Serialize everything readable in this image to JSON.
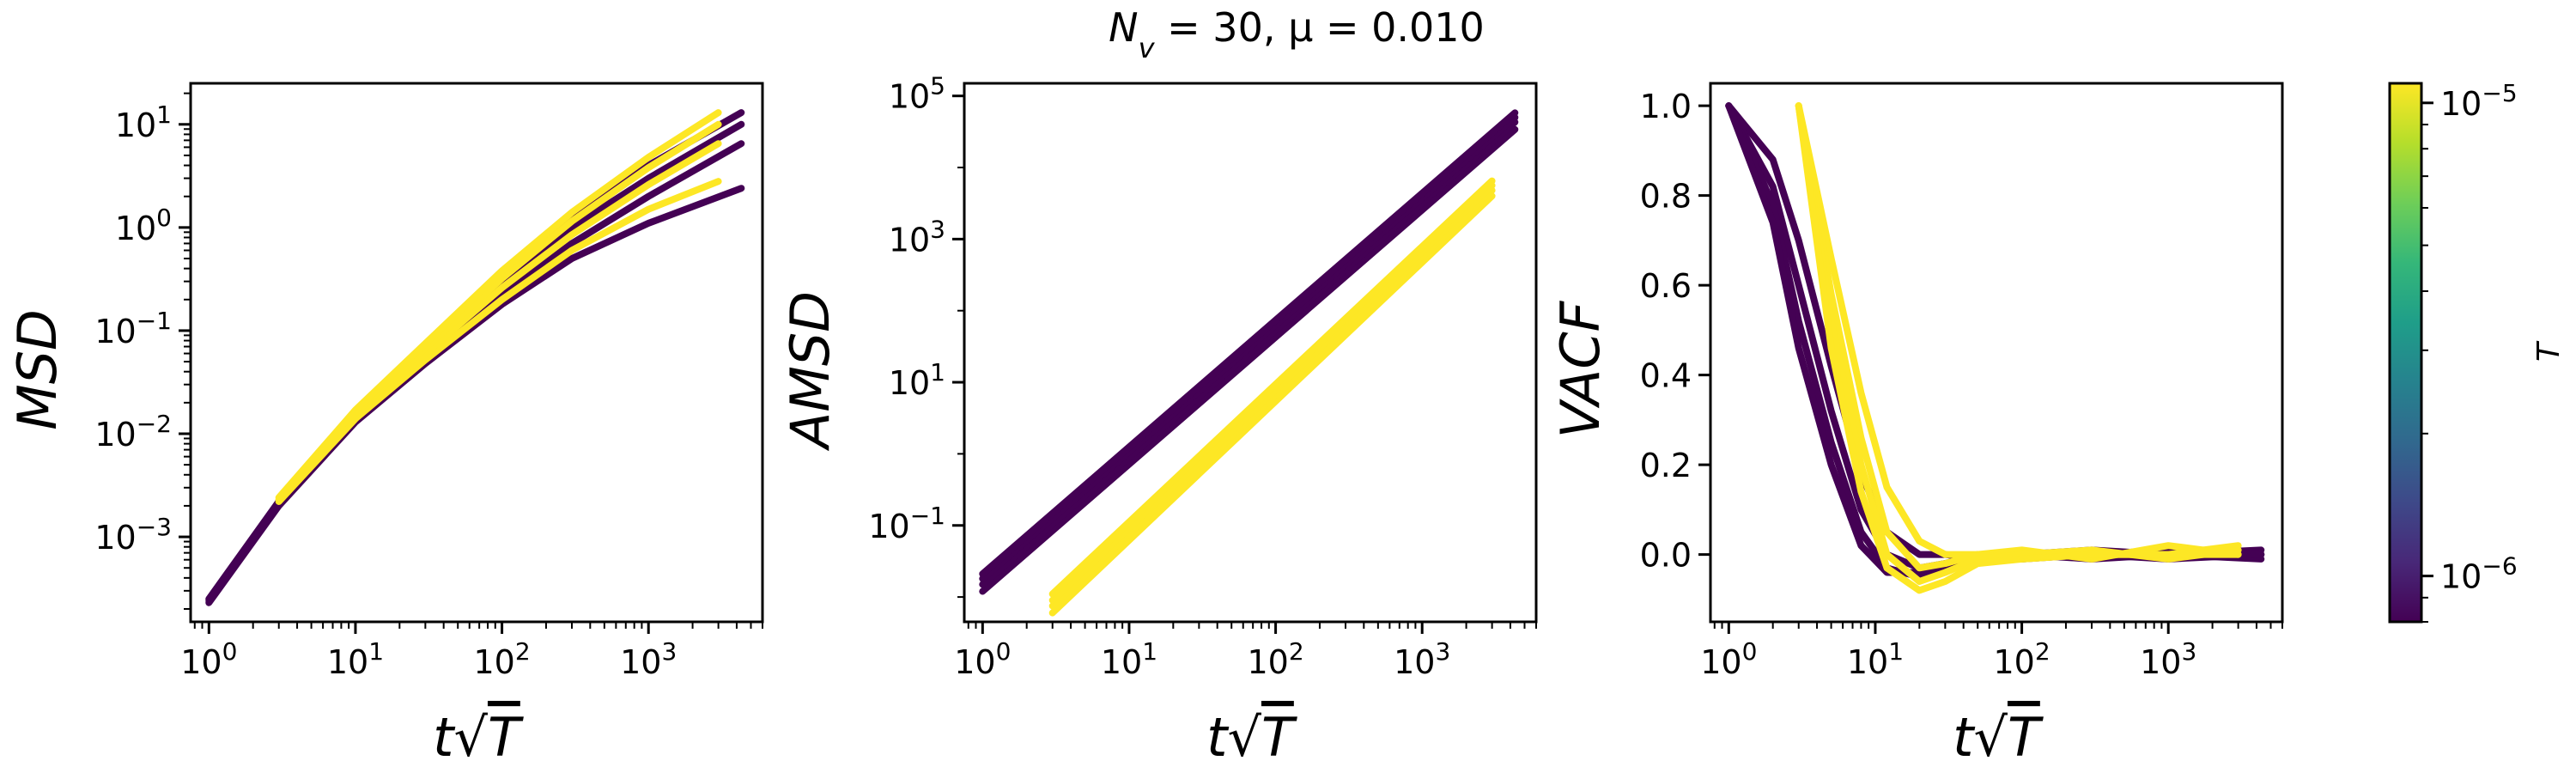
{
  "figure": {
    "title": "N_v = 30, μ = 0.010",
    "colorbar": {
      "label": "T",
      "scale": "log",
      "range": [
        8e-07,
        1.1e-05
      ],
      "ticks": [
        {
          "value": 1e-06,
          "label": "10^-6"
        },
        {
          "value": 1e-05,
          "label": "10^-5"
        }
      ],
      "colormap": [
        "#440154",
        "#482878",
        "#3e4989",
        "#31688e",
        "#26828e",
        "#1f9e89",
        "#35b779",
        "#6ece58",
        "#b5de2b",
        "#fde725"
      ]
    }
  },
  "chart_data": [
    {
      "type": "line",
      "xlabel": "t√T",
      "ylabel": "MSD",
      "xscale": "log",
      "yscale": "log",
      "xlim": [
        0.75,
        6000
      ],
      "ylim": [
        0.00015,
        25
      ],
      "xticks": [
        {
          "value": 1,
          "label": "10^0"
        },
        {
          "value": 10,
          "label": "10^1"
        },
        {
          "value": 100,
          "label": "10^2"
        },
        {
          "value": 1000,
          "label": "10^3"
        }
      ],
      "yticks": [
        {
          "value": 0.001,
          "label": "10^-3"
        },
        {
          "value": 0.01,
          "label": "10^-2"
        },
        {
          "value": 0.1,
          "label": "10^-1"
        },
        {
          "value": 1,
          "label": "10^0"
        },
        {
          "value": 10,
          "label": "10^1"
        }
      ],
      "series": [
        {
          "T_level": "low",
          "color": "#440154",
          "x": [
            1,
            3,
            10,
            30,
            100,
            300,
            1000,
            4300
          ],
          "y": [
            0.00023,
            0.002,
            0.013,
            0.048,
            0.18,
            0.5,
            1.1,
            2.4
          ]
        },
        {
          "T_level": "low",
          "color": "#440154",
          "x": [
            1,
            3,
            10,
            30,
            100,
            300,
            1000,
            4300
          ],
          "y": [
            0.00024,
            0.0021,
            0.014,
            0.055,
            0.22,
            0.7,
            2.0,
            6.5
          ]
        },
        {
          "T_level": "low",
          "color": "#440154",
          "x": [
            1,
            3,
            10,
            30,
            100,
            300,
            1000,
            4300
          ],
          "y": [
            0.00025,
            0.0022,
            0.015,
            0.062,
            0.28,
            1.0,
            3.0,
            10
          ]
        },
        {
          "T_level": "low",
          "color": "#440154",
          "x": [
            1,
            3,
            10,
            30,
            100,
            300,
            1000,
            4300
          ],
          "y": [
            0.00025,
            0.0022,
            0.016,
            0.07,
            0.35,
            1.3,
            4.0,
            13
          ]
        },
        {
          "T_level": "high",
          "color": "#fde725",
          "x": [
            3,
            10,
            30,
            100,
            300,
            1000,
            3000
          ],
          "y": [
            0.0022,
            0.014,
            0.052,
            0.2,
            0.6,
            1.5,
            2.8
          ]
        },
        {
          "T_level": "high",
          "color": "#fde725",
          "x": [
            3,
            10,
            30,
            100,
            300,
            1000,
            3000
          ],
          "y": [
            0.0023,
            0.015,
            0.06,
            0.26,
            0.85,
            2.6,
            6.5
          ]
        },
        {
          "T_level": "high",
          "color": "#fde725",
          "x": [
            3,
            10,
            30,
            100,
            300,
            1000,
            3000
          ],
          "y": [
            0.0023,
            0.016,
            0.068,
            0.32,
            1.15,
            3.8,
            10
          ]
        },
        {
          "T_level": "high",
          "color": "#fde725",
          "x": [
            3,
            10,
            30,
            100,
            300,
            1000,
            3000
          ],
          "y": [
            0.0024,
            0.017,
            0.075,
            0.38,
            1.4,
            4.8,
            13
          ]
        }
      ]
    },
    {
      "type": "line",
      "xlabel": "t√T",
      "ylabel": "AMSD",
      "xscale": "log",
      "yscale": "log",
      "xlim": [
        0.75,
        6000
      ],
      "ylim": [
        0.0045,
        150000
      ],
      "xticks": [
        {
          "value": 1,
          "label": "10^0"
        },
        {
          "value": 10,
          "label": "10^1"
        },
        {
          "value": 100,
          "label": "10^2"
        },
        {
          "value": 1000,
          "label": "10^3"
        }
      ],
      "yticks": [
        {
          "value": 0.1,
          "label": "10^-1"
        },
        {
          "value": 10,
          "label": "10^1"
        },
        {
          "value": 1000,
          "label": "10^3"
        },
        {
          "value": 100000,
          "label": "10^5"
        }
      ],
      "series": [
        {
          "T_level": "low",
          "color": "#440154",
          "x": [
            1,
            4300
          ],
          "y": [
            0.012,
            34000
          ]
        },
        {
          "T_level": "low",
          "color": "#440154",
          "x": [
            1,
            4300
          ],
          "y": [
            0.015,
            43000
          ]
        },
        {
          "T_level": "low",
          "color": "#440154",
          "x": [
            1,
            4300
          ],
          "y": [
            0.018,
            50000
          ]
        },
        {
          "T_level": "low",
          "color": "#440154",
          "x": [
            1,
            4300
          ],
          "y": [
            0.021,
            58000
          ]
        },
        {
          "T_level": "high",
          "color": "#fde725",
          "x": [
            3,
            3000
          ],
          "y": [
            0.006,
            4000
          ]
        },
        {
          "T_level": "high",
          "color": "#fde725",
          "x": [
            3,
            3000
          ],
          "y": [
            0.0075,
            4800
          ]
        },
        {
          "T_level": "high",
          "color": "#fde725",
          "x": [
            3,
            3000
          ],
          "y": [
            0.009,
            5600
          ]
        },
        {
          "T_level": "high",
          "color": "#fde725",
          "x": [
            3,
            3000
          ],
          "y": [
            0.011,
            6500
          ]
        }
      ]
    },
    {
      "type": "line",
      "xlabel": "t√T",
      "ylabel": "VACF",
      "xscale": "log",
      "yscale": "linear",
      "xlim": [
        0.75,
        6000
      ],
      "ylim": [
        -0.15,
        1.05
      ],
      "xticks": [
        {
          "value": 1,
          "label": "10^0"
        },
        {
          "value": 10,
          "label": "10^1"
        },
        {
          "value": 100,
          "label": "10^2"
        },
        {
          "value": 1000,
          "label": "10^3"
        }
      ],
      "yticks": [
        {
          "value": 0,
          "label": "0.0"
        },
        {
          "value": 0.2,
          "label": "0.2"
        },
        {
          "value": 0.4,
          "label": "0.4"
        },
        {
          "value": 0.6,
          "label": "0.6"
        },
        {
          "value": 0.8,
          "label": "0.8"
        },
        {
          "value": 1,
          "label": "1.0"
        }
      ],
      "series": [
        {
          "T_level": "low",
          "color": "#440154",
          "x": [
            1,
            2,
            3,
            5,
            8,
            12,
            20,
            30,
            50,
            100,
            300,
            1000,
            4300
          ],
          "y": [
            1.0,
            0.88,
            0.7,
            0.42,
            0.18,
            0.05,
            0.0,
            0.0,
            -0.01,
            0.0,
            -0.01,
            0.0,
            0.01
          ]
        },
        {
          "T_level": "low",
          "color": "#440154",
          "x": [
            1,
            2,
            3,
            5,
            8,
            12,
            20,
            30,
            50,
            100,
            300,
            1000,
            4300
          ],
          "y": [
            1.0,
            0.82,
            0.6,
            0.32,
            0.1,
            0.0,
            -0.03,
            -0.02,
            -0.01,
            0.0,
            0.0,
            -0.01,
            0.0
          ]
        },
        {
          "T_level": "low",
          "color": "#440154",
          "x": [
            1,
            2,
            3,
            5,
            8,
            12,
            20,
            30,
            50,
            100,
            300,
            1000,
            4300
          ],
          "y": [
            1.0,
            0.78,
            0.52,
            0.25,
            0.05,
            -0.03,
            -0.05,
            -0.03,
            -0.01,
            0.0,
            0.01,
            0.0,
            -0.01
          ]
        },
        {
          "T_level": "low",
          "color": "#440154",
          "x": [
            1,
            2,
            3,
            5,
            8,
            12,
            20,
            30,
            50,
            100,
            300,
            1000,
            4300
          ],
          "y": [
            1.0,
            0.74,
            0.46,
            0.2,
            0.02,
            -0.04,
            -0.04,
            -0.02,
            0.0,
            -0.01,
            0.0,
            0.01,
            0.0
          ]
        },
        {
          "T_level": "high",
          "color": "#fde725",
          "x": [
            3,
            5,
            8,
            12,
            20,
            30,
            50,
            100,
            300,
            1000,
            3000
          ],
          "y": [
            1.0,
            0.66,
            0.36,
            0.15,
            0.03,
            0.0,
            0.0,
            0.01,
            -0.01,
            0.02,
            0.0
          ]
        },
        {
          "T_level": "high",
          "color": "#fde725",
          "x": [
            3,
            5,
            8,
            12,
            20,
            30,
            50,
            100,
            300,
            1000,
            3000
          ],
          "y": [
            1.0,
            0.58,
            0.26,
            0.05,
            -0.03,
            -0.02,
            0.0,
            -0.01,
            0.0,
            0.0,
            0.02
          ]
        },
        {
          "T_level": "high",
          "color": "#fde725",
          "x": [
            3,
            5,
            8,
            12,
            20,
            30,
            50,
            100,
            300,
            1000,
            3000
          ],
          "y": [
            1.0,
            0.52,
            0.2,
            0.0,
            -0.06,
            -0.04,
            -0.01,
            0.0,
            0.01,
            -0.01,
            0.01
          ]
        },
        {
          "T_level": "high",
          "color": "#fde725",
          "x": [
            3,
            5,
            8,
            12,
            20,
            30,
            50,
            100,
            300,
            1000,
            3000
          ],
          "y": [
            1.0,
            0.46,
            0.14,
            -0.03,
            -0.08,
            -0.06,
            -0.02,
            -0.01,
            0.0,
            0.0,
            0.0
          ]
        }
      ]
    }
  ]
}
